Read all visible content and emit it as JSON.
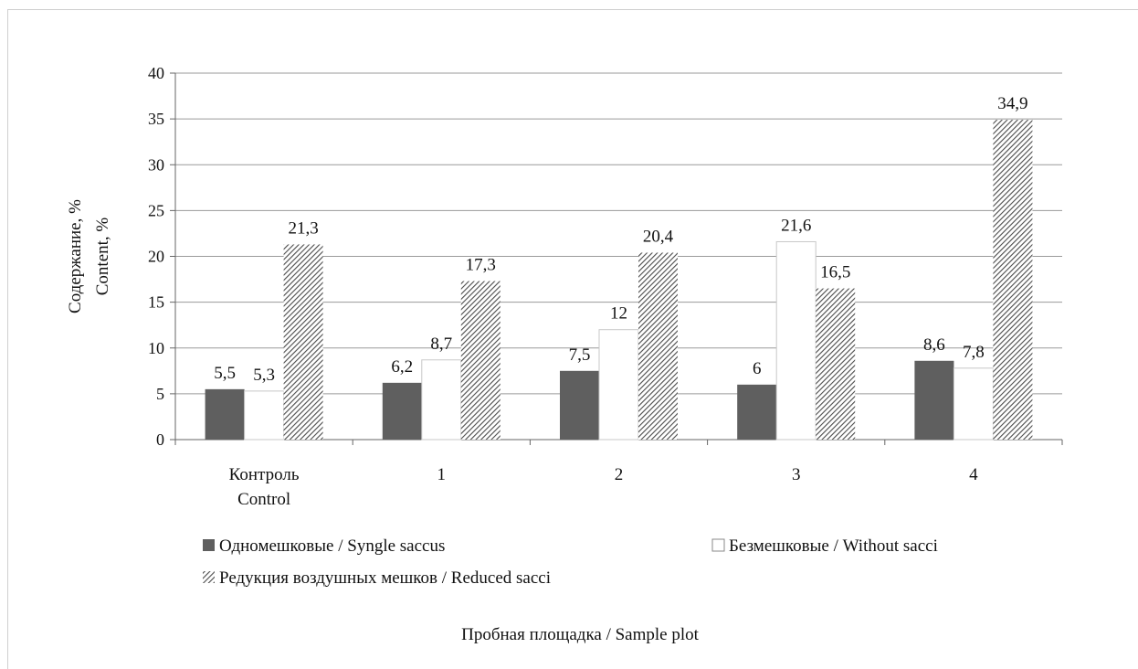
{
  "chart_data": {
    "type": "bar",
    "categories": [
      [
        "Контроль",
        "Control"
      ],
      [
        "1"
      ],
      [
        "2"
      ],
      [
        "3"
      ],
      [
        "4"
      ]
    ],
    "series": [
      {
        "name": "Одномешковые / Syngle saccus",
        "values": [
          5.5,
          6.2,
          7.5,
          6,
          8.6
        ],
        "labels": [
          "5,5",
          "6,2",
          "7,5",
          "6",
          "8,6"
        ],
        "fill": "#5f5f5f"
      },
      {
        "name": "Безмешковые / Without sacci",
        "values": [
          5.3,
          8.7,
          12,
          21.6,
          7.8
        ],
        "labels": [
          "5,3",
          "8,7",
          "12",
          "21,6",
          "7,8"
        ],
        "fill": "#ffffff"
      },
      {
        "name": "Редукция воздушных мешков / Reduced sacci",
        "values": [
          21.3,
          17.3,
          20.4,
          16.5,
          34.9
        ],
        "labels": [
          "21,3",
          "17,3",
          "20,4",
          "16,5",
          "34,9"
        ],
        "fill": "hatch"
      }
    ],
    "ylabel": [
      "Содержание, %",
      "Content, %"
    ],
    "xlabel": "Пробная площадка / Sample plot",
    "ylim": [
      0,
      40
    ],
    "yticks": [
      "0",
      "5",
      "10",
      "15",
      "20",
      "25",
      "30",
      "35",
      "40"
    ],
    "grid": true,
    "legend_position": "bottom"
  }
}
